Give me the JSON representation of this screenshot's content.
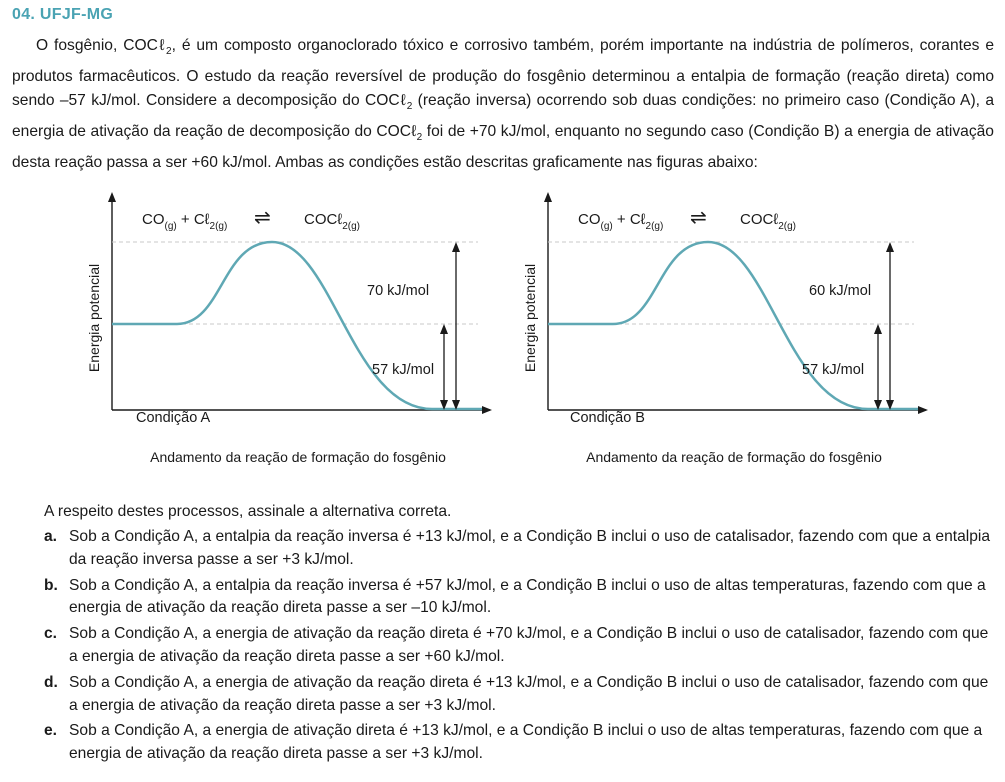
{
  "header": "04. UFJF-MG",
  "intro": {
    "p1": "O fosgênio, COCℓ",
    "p1_sub": "2",
    "p2": ", é um composto organoclorado tóxico e corrosivo também, porém importante na indústria de polímeros, corantes e produtos farmacêuticos. O estudo da reação reversível de produção do fosgênio determinou a entalpia de formação (reação direta) como sendo –57 kJ/mol. Considere a decomposição do COCℓ",
    "p2_sub": "2",
    "p3": " (reação inversa) ocorrendo sob duas condições: no primeiro caso (Condição A), a energia de ativação da reação de decomposição do COCℓ",
    "p3_sub": "2",
    "p4": " foi de +70 kJ/mol, enquanto no segundo caso (Condição B) a energia de ativação desta reação passa a ser +60 kJ/mol. Ambas as condições estão descritas graficamente nas figuras abaixo:"
  },
  "figures": [
    {
      "reactants": "CO",
      "reactants_sub1": "(g)",
      "reactants_mid": " + Cℓ",
      "reactants_sub2": "2(g)",
      "arrow": "⇌",
      "product": "COCℓ",
      "product_sub": "2(g)",
      "ylabel": "Energia potencial",
      "barrier_label": "70 kJ/mol",
      "enthalpy_label": "57 kJ/mol",
      "condition": "Condição A",
      "xlabel": "Andamento da reação de formação do fosgênio"
    },
    {
      "reactants": "CO",
      "reactants_sub1": "(g)",
      "reactants_mid": " + Cℓ",
      "reactants_sub2": "2(g)",
      "arrow": "⇌",
      "product": "COCℓ",
      "product_sub": "2(g)",
      "ylabel": "Energia potencial",
      "barrier_label": "60 kJ/mol",
      "enthalpy_label": "57 kJ/mol",
      "condition": "Condição B",
      "xlabel": "Andamento da reação de formação do fosgênio"
    }
  ],
  "stem": "A respeito destes processos, assinale a alternativa correta.",
  "options": [
    {
      "letter": "a.",
      "text": "Sob a Condição A, a entalpia da reação inversa é +13 kJ/mol, e a Condição B inclui o uso de catalisador, fazendo com que a entalpia da reação inversa passe a ser +3 kJ/mol."
    },
    {
      "letter": "b.",
      "text": "Sob a Condição A, a entalpia da reação inversa é +57 kJ/mol, e a Condição B inclui o uso de altas temperaturas, fazendo com que a energia de ativação da reação direta passe a ser –10 kJ/mol."
    },
    {
      "letter": "c.",
      "text": "Sob a Condição A, a energia de ativação da reação direta é +70 kJ/mol, e a Condição B inclui o uso de catalisador, fazendo com que a energia de ativação da reação direta passe a ser +60 kJ/mol."
    },
    {
      "letter": "d.",
      "text": "Sob a Condição A, a energia de ativação da reação direta é +13 kJ/mol, e a Condição B inclui o uso de catalisador, fazendo com que a energia de ativação da reação direta passe a ser +3 kJ/mol."
    },
    {
      "letter": "e.",
      "text": "Sob a Condição A, a energia de ativação direta é +13 kJ/mol, e a Condição B inclui o uso de altas temperaturas, fazendo com que a energia de ativação da reação direta passe a ser +3 kJ/mol."
    }
  ],
  "colors": {
    "header": "#4aa3b3",
    "curve": "#5fa8b4",
    "guide": "#c8c8c8"
  }
}
